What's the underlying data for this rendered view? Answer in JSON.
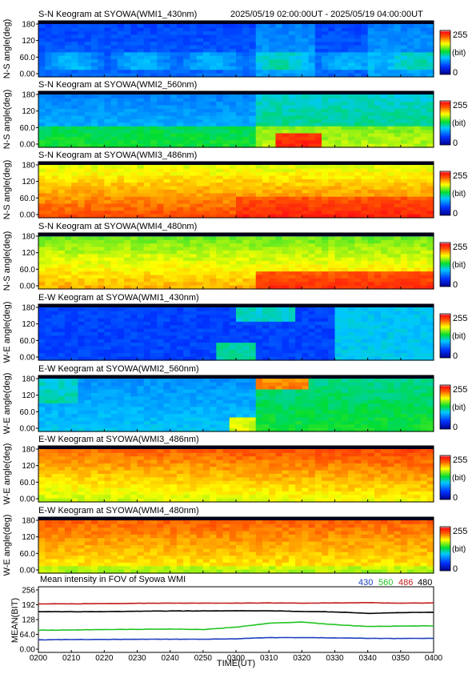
{
  "header": {
    "time_range": "2025/05/19 02:00:00UT - 2025/05/19 04:00:00UT"
  },
  "colorbar": {
    "max_label": "255",
    "unit_label": "(bit)",
    "min_label": "0"
  },
  "keograms": [
    {
      "title": "S-N Keogram at SYOWA(WMI1_430nm)",
      "ylabel": "N-S angle(deg)",
      "yticks": [
        "180",
        "120",
        "60.0",
        "0.00"
      ],
      "base_level": "low-blue"
    },
    {
      "title": "S-N Keogram at SYOWA(WMI2_560nm)",
      "ylabel": "N-S angle(deg)",
      "yticks": [
        "180",
        "120",
        "60.0",
        "0.00"
      ],
      "base_level": "blue-green"
    },
    {
      "title": "S-N Keogram at SYOWA(WMI3_486nm)",
      "ylabel": "N-S angle(deg)",
      "yticks": [
        "180",
        "120",
        "60.0",
        "0.00"
      ],
      "base_level": "yellow-orange"
    },
    {
      "title": "S-N Keogram at SYOWA(WMI4_480nm)",
      "ylabel": "N-S angle(deg)",
      "yticks": [
        "180",
        "120",
        "60.0",
        "0.00"
      ],
      "base_level": "green-yellow"
    },
    {
      "title": "E-W Keogram at SYOWA(WMI1_430nm)",
      "ylabel": "W-E angle(deg)",
      "yticks": [
        "180",
        "120",
        "60.0",
        "0.00"
      ],
      "base_level": "low-blue"
    },
    {
      "title": "E-W Keogram at SYOWA(WMI2_560nm)",
      "ylabel": "W-E angle(deg)",
      "yticks": [
        "180",
        "120",
        "60.0",
        "0.00"
      ],
      "base_level": "blue-green"
    },
    {
      "title": "E-W Keogram at SYOWA(WMI3_486nm)",
      "ylabel": "W-E angle(deg)",
      "yticks": [
        "180",
        "120",
        "60.0",
        "0.00"
      ],
      "base_level": "orange-red"
    },
    {
      "title": "E-W Keogram at SYOWA(WMI4_480nm)",
      "ylabel": "W-E angle(deg)",
      "yticks": [
        "180",
        "120",
        "60.0",
        "0.00"
      ],
      "base_level": "orange-red"
    }
  ],
  "mean_panel": {
    "title": "Mean intensity in FOV of Syowa WMI",
    "ylabel": "MEAN(BIT)",
    "yticks": [
      "256",
      "192",
      "128",
      "64.0",
      "0.00"
    ],
    "legend": [
      {
        "label": "430",
        "color": "#1f3fbf"
      },
      {
        "label": "560",
        "color": "#21c421"
      },
      {
        "label": "486",
        "color": "#c41e1e"
      },
      {
        "label": "480",
        "color": "#000000"
      }
    ]
  },
  "xaxis": {
    "label": "TIME(UT)",
    "ticks": [
      "0200",
      "0210",
      "0220",
      "0230",
      "0240",
      "0250",
      "0300",
      "0310",
      "0320",
      "0330",
      "0340",
      "0350",
      "0400"
    ]
  },
  "chart_data": {
    "type": "line",
    "title": "Mean intensity in FOV of Syowa WMI",
    "xlabel": "TIME(UT)",
    "ylabel": "MEAN(BIT)",
    "ylim": [
      0,
      256
    ],
    "x": [
      "0200",
      "0210",
      "0220",
      "0230",
      "0240",
      "0250",
      "0300",
      "0310",
      "0320",
      "0330",
      "0340",
      "0350",
      "0400"
    ],
    "series": [
      {
        "name": "430",
        "color": "#1f3fbf",
        "values": [
          40,
          42,
          42,
          43,
          43,
          43,
          45,
          50,
          50,
          49,
          47,
          46,
          47
        ]
      },
      {
        "name": "560",
        "color": "#21c421",
        "values": [
          82,
          83,
          85,
          86,
          87,
          85,
          95,
          112,
          117,
          106,
          98,
          100,
          101
        ]
      },
      {
        "name": "486",
        "color": "#c41e1e",
        "values": [
          196,
          196,
          197,
          198,
          199,
          199,
          199,
          200,
          199,
          200,
          201,
          199,
          200
        ]
      },
      {
        "name": "480",
        "color": "#000000",
        "values": [
          162,
          162,
          162,
          164,
          165,
          165,
          166,
          166,
          163,
          161,
          155,
          158,
          160
        ]
      }
    ]
  }
}
